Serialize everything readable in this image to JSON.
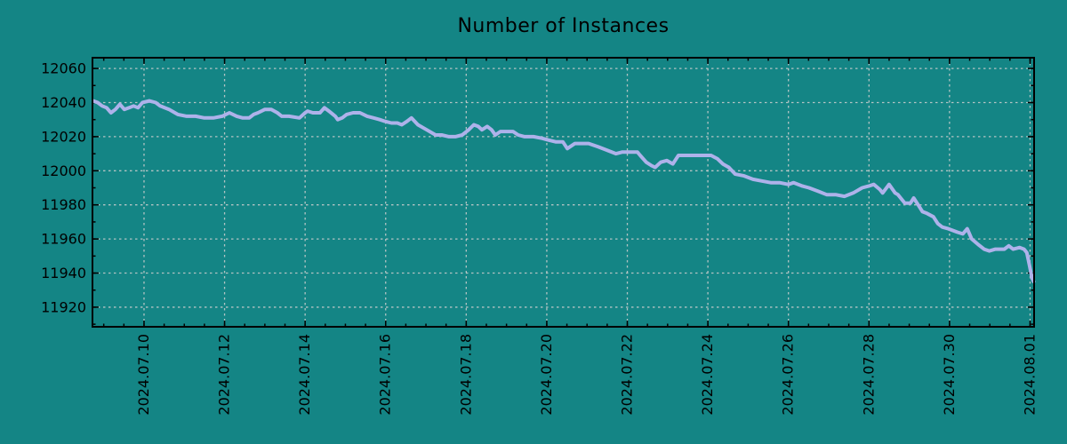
{
  "title": "Number of Instances",
  "colors": {
    "background": "#148585",
    "line": "#aeb2ea",
    "grid": "#cfcfcf",
    "axis": "#000000",
    "text": "#000000"
  },
  "chart_data": {
    "type": "line",
    "title": "Number of Instances",
    "xlabel": "",
    "ylabel": "",
    "legend": "none",
    "grid": true,
    "x_unit": "date (July day-of-month equivalent, 32 = 2024.08.01)",
    "x_range_days": [
      8.72,
      32.1
    ],
    "y_range": [
      11908.5,
      12066.3
    ],
    "x_tick_days": [
      10,
      12,
      14,
      16,
      18,
      20,
      22,
      24,
      26,
      28,
      30,
      32
    ],
    "x_tick_labels": [
      "2024.07.10",
      "2024.07.12",
      "2024.07.14",
      "2024.07.16",
      "2024.07.18",
      "2024.07.20",
      "2024.07.22",
      "2024.07.24",
      "2024.07.26",
      "2024.07.28",
      "2024.07.30",
      "2024.08.01"
    ],
    "x_minor_step_days": 0.5,
    "y_ticks": [
      11920,
      11940,
      11960,
      11980,
      12000,
      12020,
      12040,
      12060
    ],
    "y_minor_step": 10,
    "series": [
      {
        "name": "instances",
        "points": [
          [
            8.74,
            12041
          ],
          [
            8.85,
            12040
          ],
          [
            8.96,
            12038
          ],
          [
            9.07,
            12037
          ],
          [
            9.18,
            12034
          ],
          [
            9.29,
            12036
          ],
          [
            9.4,
            12039
          ],
          [
            9.51,
            12036
          ],
          [
            9.63,
            12037
          ],
          [
            9.74,
            12038
          ],
          [
            9.85,
            12037
          ],
          [
            9.96,
            12040
          ],
          [
            10.13,
            12041
          ],
          [
            10.29,
            12040
          ],
          [
            10.4,
            12038
          ],
          [
            10.62,
            12036
          ],
          [
            10.84,
            12033
          ],
          [
            11.06,
            12032
          ],
          [
            11.28,
            12032
          ],
          [
            11.5,
            12031
          ],
          [
            11.72,
            12031
          ],
          [
            11.94,
            12032
          ],
          [
            12.12,
            12034
          ],
          [
            12.3,
            12032
          ],
          [
            12.45,
            12031
          ],
          [
            12.61,
            12031
          ],
          [
            12.72,
            12033
          ],
          [
            12.83,
            12034
          ],
          [
            13.0,
            12036
          ],
          [
            13.16,
            12036
          ],
          [
            13.31,
            12034
          ],
          [
            13.42,
            12032
          ],
          [
            13.6,
            12032
          ],
          [
            13.86,
            12031
          ],
          [
            14.0,
            12034
          ],
          [
            14.06,
            12035
          ],
          [
            14.19,
            12034
          ],
          [
            14.37,
            12034
          ],
          [
            14.48,
            12037
          ],
          [
            14.59,
            12035
          ],
          [
            14.75,
            12032
          ],
          [
            14.81,
            12030
          ],
          [
            14.92,
            12031
          ],
          [
            15.03,
            12033
          ],
          [
            15.19,
            12034
          ],
          [
            15.36,
            12034
          ],
          [
            15.54,
            12032
          ],
          [
            15.7,
            12031
          ],
          [
            15.85,
            12030
          ],
          [
            15.98,
            12029
          ],
          [
            16.14,
            12028
          ],
          [
            16.29,
            12028
          ],
          [
            16.4,
            12027
          ],
          [
            16.53,
            12029
          ],
          [
            16.64,
            12031
          ],
          [
            16.8,
            12027
          ],
          [
            17.02,
            12024
          ],
          [
            17.24,
            12021
          ],
          [
            17.39,
            12021
          ],
          [
            17.57,
            12020
          ],
          [
            17.73,
            12020
          ],
          [
            17.9,
            12021
          ],
          [
            18.06,
            12024
          ],
          [
            18.19,
            12027
          ],
          [
            18.3,
            12026
          ],
          [
            18.39,
            12024
          ],
          [
            18.52,
            12026
          ],
          [
            18.63,
            12024
          ],
          [
            18.72,
            12021
          ],
          [
            18.85,
            12023
          ],
          [
            19.0,
            12023
          ],
          [
            19.16,
            12023
          ],
          [
            19.29,
            12021
          ],
          [
            19.45,
            12020
          ],
          [
            19.67,
            12020
          ],
          [
            19.89,
            12019
          ],
          [
            20.04,
            12018
          ],
          [
            20.22,
            12017
          ],
          [
            20.4,
            12017
          ],
          [
            20.51,
            12013
          ],
          [
            20.7,
            12016
          ],
          [
            20.88,
            12016
          ],
          [
            21.04,
            12016
          ],
          [
            21.28,
            12014
          ],
          [
            21.5,
            12012
          ],
          [
            21.72,
            12010
          ],
          [
            21.88,
            12011
          ],
          [
            22.1,
            12011
          ],
          [
            22.25,
            12011
          ],
          [
            22.32,
            12009
          ],
          [
            22.47,
            12005
          ],
          [
            22.6,
            12003
          ],
          [
            22.69,
            12002
          ],
          [
            22.83,
            12005
          ],
          [
            22.98,
            12006
          ],
          [
            23.13,
            12004
          ],
          [
            23.27,
            12009
          ],
          [
            23.42,
            12009
          ],
          [
            23.71,
            12009
          ],
          [
            23.86,
            12009
          ],
          [
            24.08,
            12009
          ],
          [
            24.24,
            12007
          ],
          [
            24.37,
            12004
          ],
          [
            24.52,
            12002
          ],
          [
            24.68,
            11998
          ],
          [
            24.9,
            11997
          ],
          [
            25.12,
            11995
          ],
          [
            25.34,
            11994
          ],
          [
            25.56,
            11993
          ],
          [
            25.67,
            11993
          ],
          [
            25.78,
            11993
          ],
          [
            26.0,
            11992
          ],
          [
            26.13,
            11993
          ],
          [
            26.35,
            11991
          ],
          [
            26.51,
            11990
          ],
          [
            26.73,
            11988
          ],
          [
            26.95,
            11986
          ],
          [
            27.17,
            11986
          ],
          [
            27.39,
            11985
          ],
          [
            27.61,
            11987
          ],
          [
            27.83,
            11990
          ],
          [
            27.99,
            11991
          ],
          [
            28.12,
            11992
          ],
          [
            28.27,
            11989
          ],
          [
            28.34,
            11987
          ],
          [
            28.5,
            11992
          ],
          [
            28.65,
            11987
          ],
          [
            28.72,
            11986
          ],
          [
            28.89,
            11981
          ],
          [
            29.03,
            11981
          ],
          [
            29.11,
            11984
          ],
          [
            29.22,
            11980
          ],
          [
            29.33,
            11976
          ],
          [
            29.44,
            11975
          ],
          [
            29.6,
            11973
          ],
          [
            29.71,
            11969
          ],
          [
            29.82,
            11967
          ],
          [
            29.97,
            11966
          ],
          [
            30.08,
            11965
          ],
          [
            30.19,
            11964
          ],
          [
            30.33,
            11963
          ],
          [
            30.44,
            11966
          ],
          [
            30.55,
            11960
          ],
          [
            30.7,
            11957
          ],
          [
            30.86,
            11954
          ],
          [
            30.99,
            11953
          ],
          [
            31.14,
            11954
          ],
          [
            31.36,
            11954
          ],
          [
            31.47,
            11956
          ],
          [
            31.58,
            11954
          ],
          [
            31.74,
            11955
          ],
          [
            31.85,
            11954
          ],
          [
            31.92,
            11952
          ],
          [
            31.98,
            11945
          ],
          [
            32.05,
            11937
          ],
          [
            32.09,
            11935
          ]
        ]
      }
    ]
  }
}
